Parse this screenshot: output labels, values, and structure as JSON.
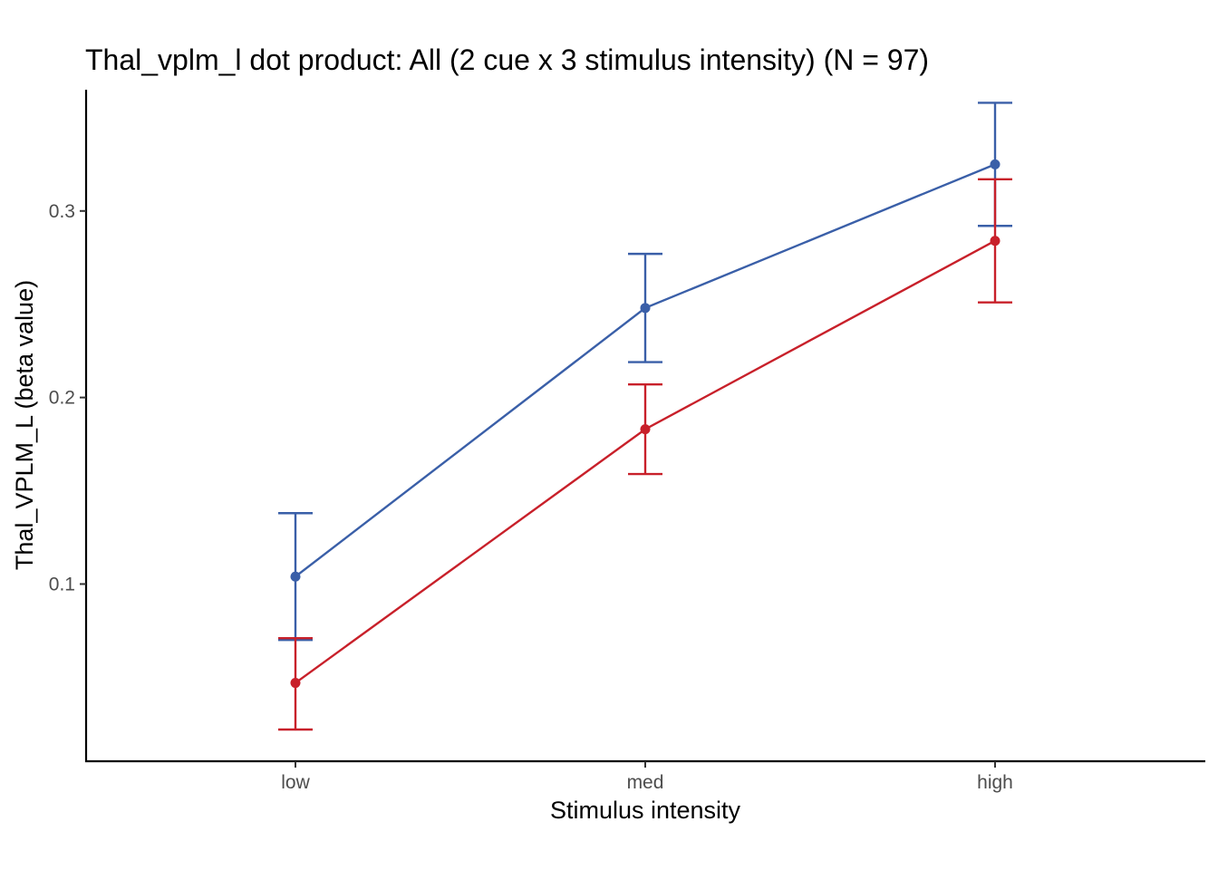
{
  "chart_data": {
    "type": "line",
    "title": "Thal_vplm_l dot product: All (2 cue x 3 stimulus intensity) (N = 97)",
    "xlabel": "Stimulus intensity",
    "ylabel": "Thal_VPLM_L  (beta value)",
    "categories": [
      "low",
      "med",
      "high"
    ],
    "ylim": [
      0.005,
      0.365
    ],
    "yticks": [
      0.1,
      0.2,
      0.3
    ],
    "ytick_labels": [
      "0.1",
      "0.2",
      "0.3"
    ],
    "grid": false,
    "legend": "none",
    "series": [
      {
        "color": "#3a5fa8",
        "values": [
          0.104,
          0.248,
          0.325
        ],
        "error_low": [
          0.07,
          0.219,
          0.292
        ],
        "error_high": [
          0.138,
          0.277,
          0.358
        ]
      },
      {
        "color": "#c8202a",
        "values": [
          0.047,
          0.183,
          0.284
        ],
        "error_low": [
          0.022,
          0.159,
          0.251
        ],
        "error_high": [
          0.071,
          0.207,
          0.317
        ]
      }
    ]
  }
}
